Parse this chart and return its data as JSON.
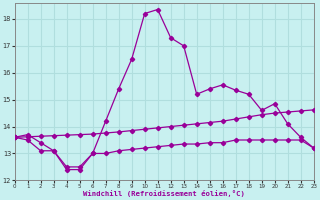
{
  "xlabel": "Windchill (Refroidissement éolien,°C)",
  "bg_color": "#c8f0f0",
  "grid_color": "#b0dede",
  "line_color": "#990099",
  "xlim": [
    0,
    23
  ],
  "ylim": [
    12,
    18.6
  ],
  "yticks": [
    12,
    13,
    14,
    15,
    16,
    17,
    18
  ],
  "xticks": [
    0,
    1,
    2,
    3,
    4,
    5,
    6,
    7,
    8,
    9,
    10,
    11,
    12,
    13,
    14,
    15,
    16,
    17,
    18,
    19,
    20,
    21,
    22,
    23
  ],
  "hours": [
    0,
    1,
    2,
    3,
    4,
    5,
    6,
    7,
    8,
    9,
    10,
    11,
    12,
    13,
    14,
    15,
    16,
    17,
    18,
    19,
    20,
    21,
    22,
    23
  ],
  "temp": [
    13.6,
    13.7,
    13.4,
    13.1,
    12.4,
    12.4,
    13.0,
    14.2,
    15.4,
    16.5,
    18.2,
    18.35,
    17.3,
    17.0,
    15.2,
    15.4,
    15.55,
    15.35,
    15.2,
    14.6,
    14.85,
    14.1,
    13.6,
    13.2
  ],
  "windchill": [
    13.6,
    13.5,
    13.1,
    13.1,
    12.5,
    12.5,
    13.0,
    13.0,
    13.1,
    13.15,
    13.2,
    13.25,
    13.3,
    13.35,
    13.35,
    13.4,
    13.4,
    13.5,
    13.5,
    13.5,
    13.5,
    13.5,
    13.5,
    13.2
  ],
  "trend": [
    13.6,
    13.62,
    13.64,
    13.66,
    13.68,
    13.7,
    13.72,
    13.76,
    13.8,
    13.85,
    13.9,
    13.95,
    14.0,
    14.05,
    14.1,
    14.15,
    14.2,
    14.28,
    14.36,
    14.44,
    14.5,
    14.54,
    14.58,
    14.62
  ]
}
